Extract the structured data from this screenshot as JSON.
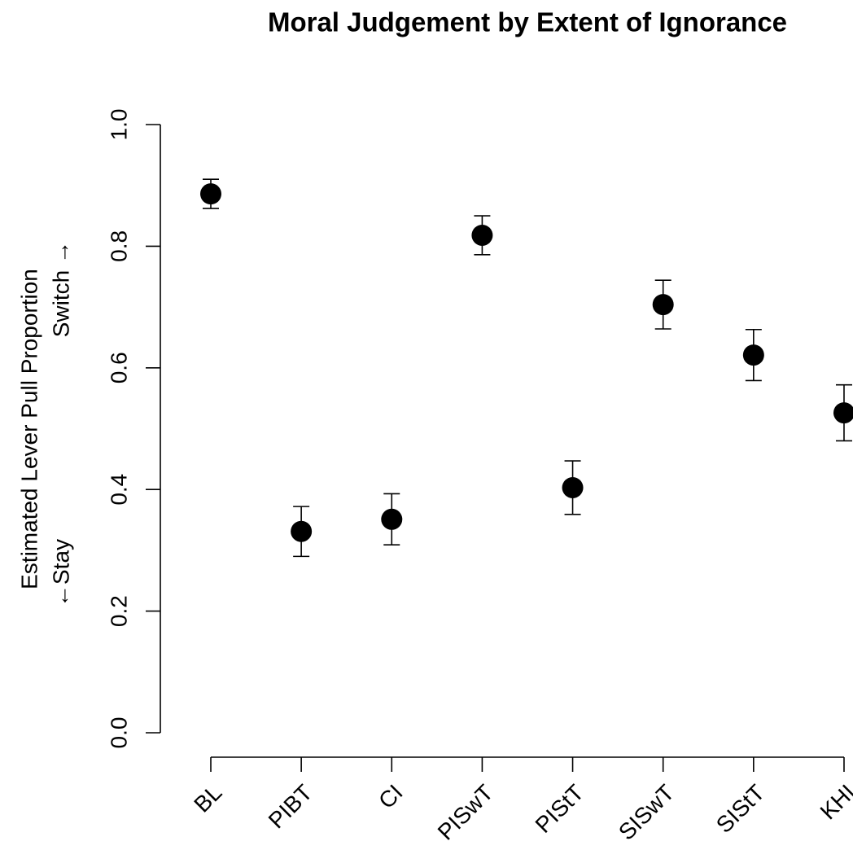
{
  "chart_data": {
    "type": "errorbar-points",
    "title": "Moral Judgement by Extent of Ignorance",
    "y_label": "Estimated Lever Pull Proportion",
    "y_annotations": [
      "←Stay",
      "Switch →"
    ],
    "categories": [
      "BL",
      "PIBT",
      "CI",
      "PISwT",
      "PIStT",
      "SISwT",
      "SIStT",
      "KHI"
    ],
    "values": [
      0.886,
      0.331,
      0.351,
      0.818,
      0.403,
      0.704,
      0.621,
      0.526
    ],
    "errors": [
      0.024,
      0.041,
      0.042,
      0.032,
      0.044,
      0.04,
      0.042,
      0.046
    ],
    "color": "#000000",
    "ylim": [
      0,
      1
    ],
    "yticks": [
      {
        "value": 0,
        "label": "0.0"
      },
      {
        "value": 0.2,
        "label": "0.2"
      },
      {
        "value": 0.4,
        "label": "0.4"
      },
      {
        "value": 0.6,
        "label": "0.6"
      },
      {
        "value": 0.8,
        "label": "0.8"
      },
      {
        "value": 1,
        "label": "1.0"
      }
    ]
  }
}
